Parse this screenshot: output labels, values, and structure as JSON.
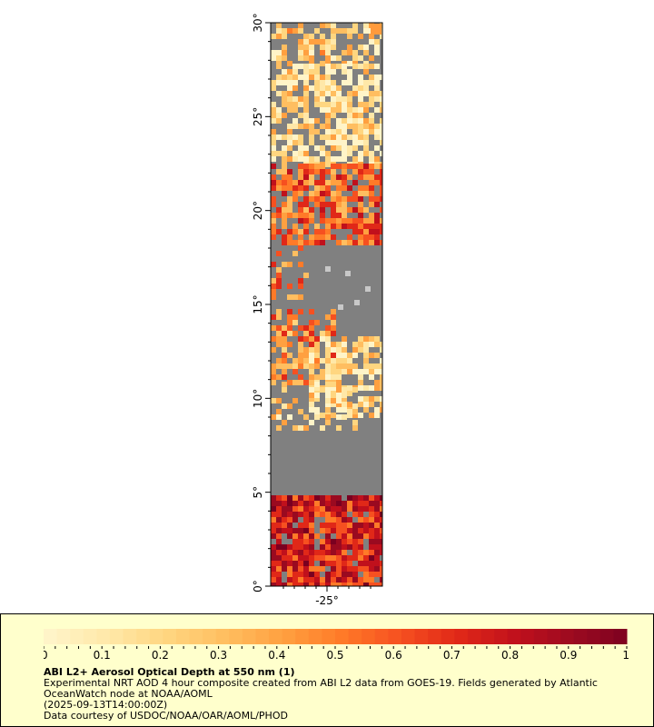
{
  "map": {
    "lat_ticks": [
      "0°",
      "5°",
      "10°",
      "15°",
      "20°",
      "25°",
      "30°"
    ],
    "lon_ticks": [
      "-25°"
    ],
    "lat_range": [
      0,
      30
    ],
    "background_color": "#808080",
    "ocean_color": "#808080"
  },
  "legend": {
    "ticks": [
      "0",
      "0.1",
      "0.2",
      "0.3",
      "0.4",
      "0.5",
      "0.6",
      "0.7",
      "0.8",
      "0.9",
      "1"
    ],
    "range": [
      0,
      1
    ],
    "colors": [
      "#fff4c8",
      "#ffe8a8",
      "#ffd680",
      "#ffbe60",
      "#ffa040",
      "#ff7a28",
      "#f65020",
      "#e02818",
      "#c0101c",
      "#9a0a20",
      "#7a0020"
    ]
  },
  "caption": {
    "title": "ABI L2+ Aerosol Optical Depth at 550 nm (1)",
    "description": "Experimental NRT AOD 4 hour composite created from ABI L2 data from GOES-19. Fields generated by Atlantic OceanWatch node at NOAA/AOML",
    "timestamp": "(2025-09-13T14:00:00Z)",
    "credit": "Data courtesy of USDOC/NOAA/OAR/AOML/PHOD"
  }
}
